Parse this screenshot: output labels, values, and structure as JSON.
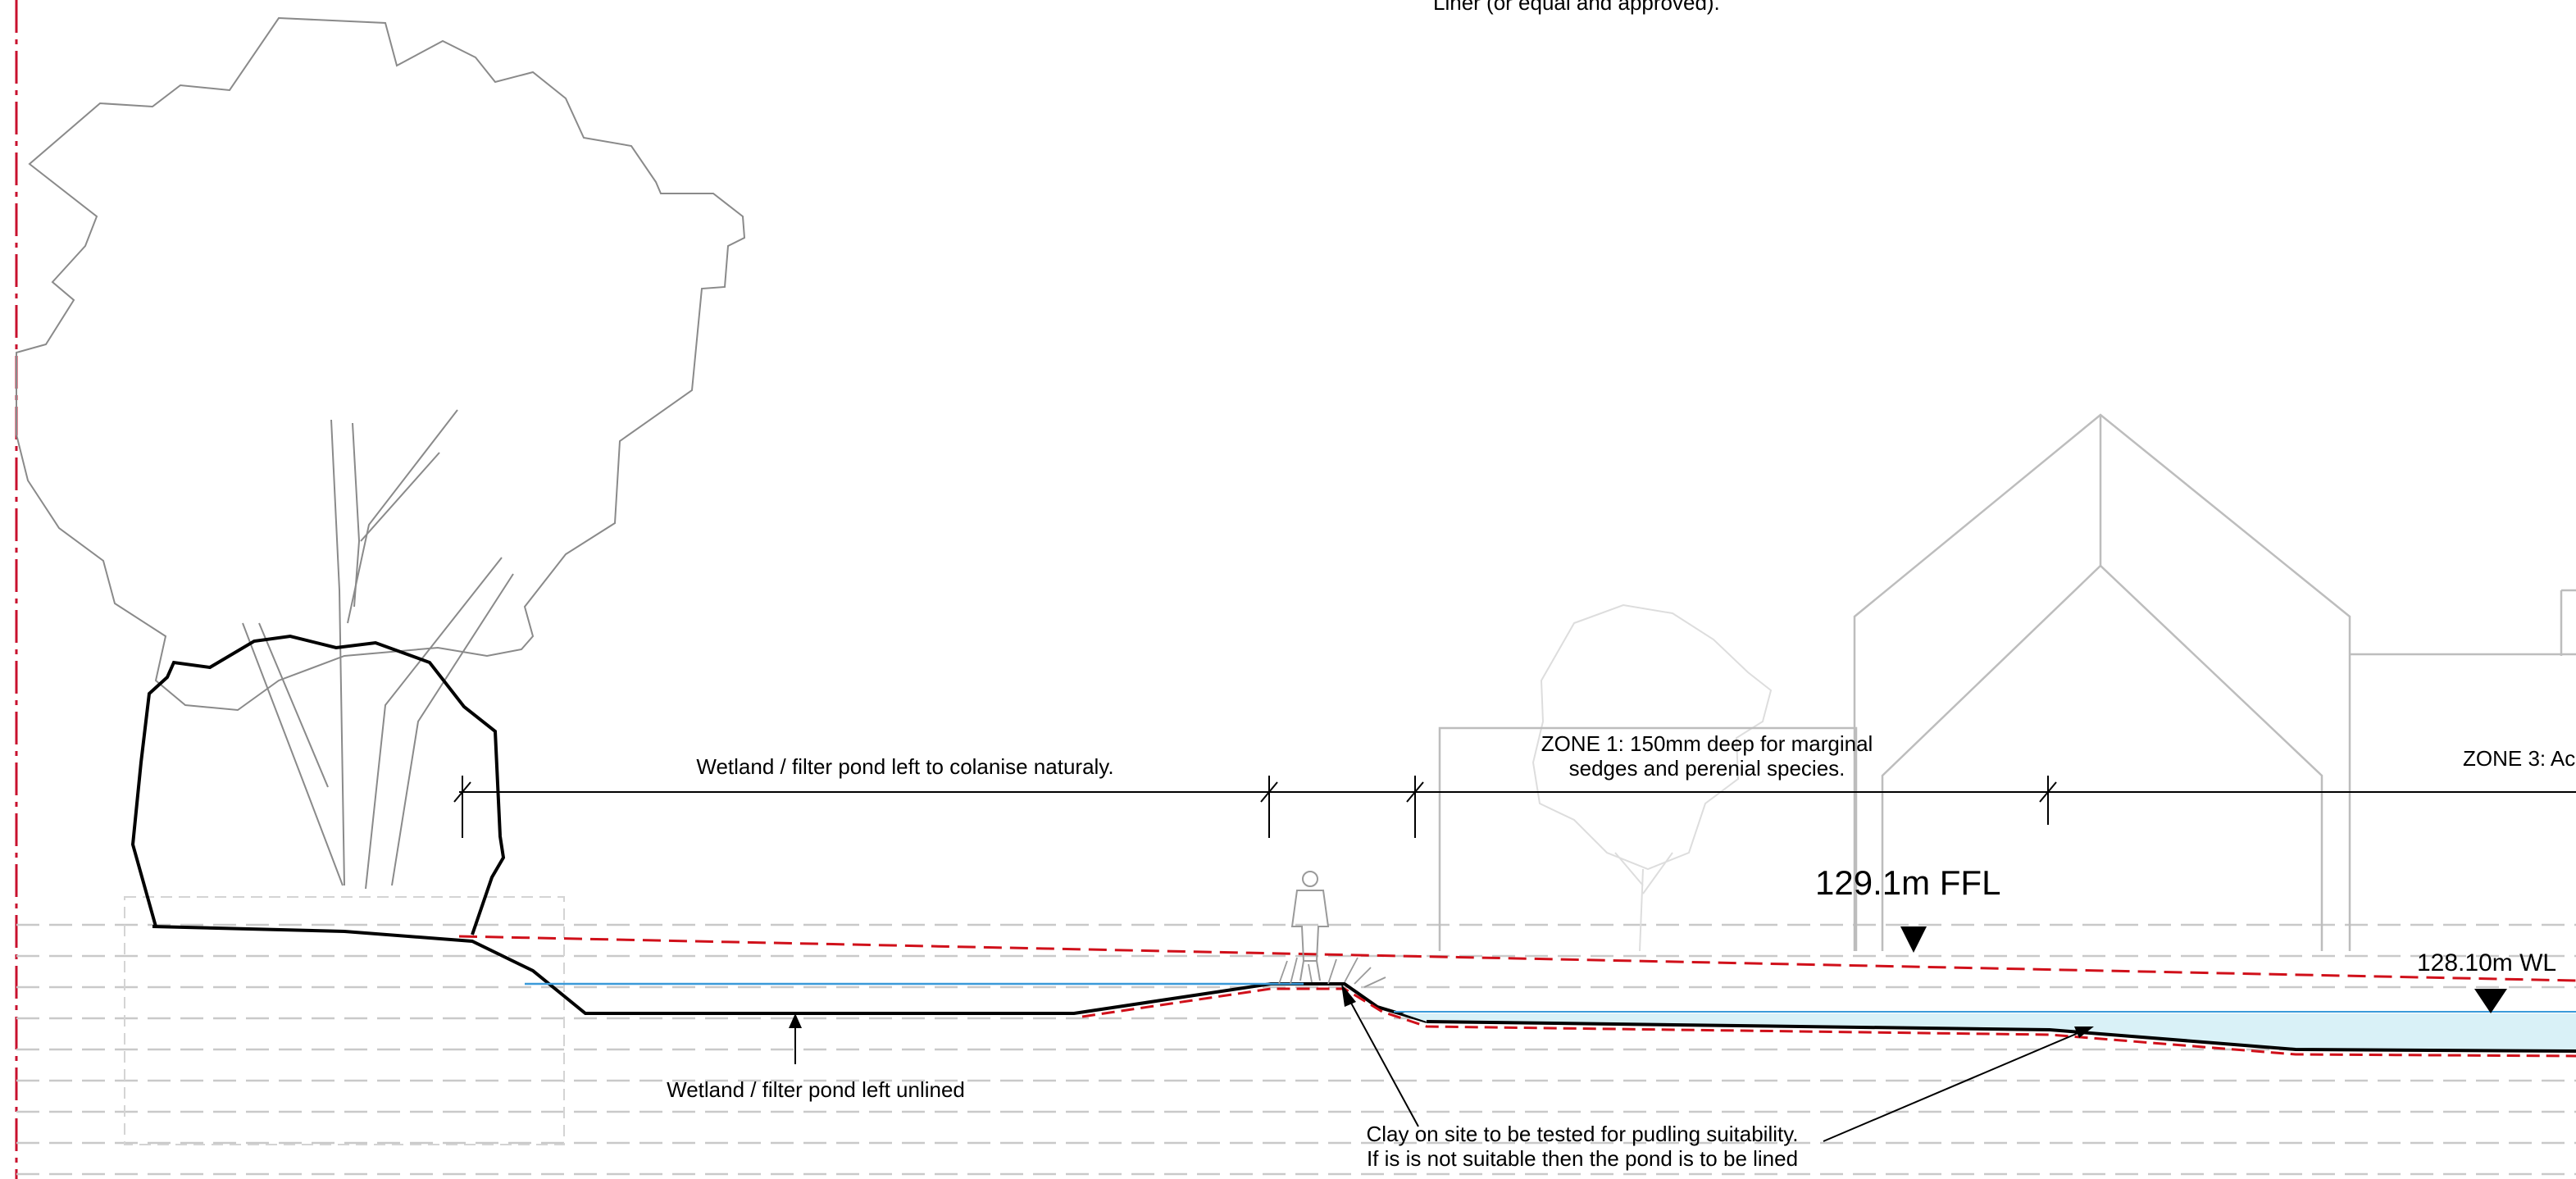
{
  "annotations": {
    "liner_top": "Liner (or equal and approved).",
    "wetland_colonise": "Wetland / filter pond left to colanise naturaly.",
    "zone1_line1": "ZONE 1: 150mm deep for marginal",
    "zone1_line2": "sedges and perenial species.",
    "zone3_partial": "ZONE 3: Ac",
    "ffl_level": "129.1m FFL",
    "wl_level": "128.10m WL",
    "wetland_unlined": "Wetland / filter pond left unlined",
    "clay_line1": "Clay on site to be tested for pudling suitability.",
    "clay_line2": "If is is not suitable then the pond is to be lined"
  },
  "colors": {
    "ground_line": "#000000",
    "liner_dash": "#d0101a",
    "water": "#3a9ad9",
    "water_fill": "#d9f1f7",
    "boundary": "#c8102e",
    "context": "#bdbdbd",
    "strata": "#c9c9c9"
  }
}
